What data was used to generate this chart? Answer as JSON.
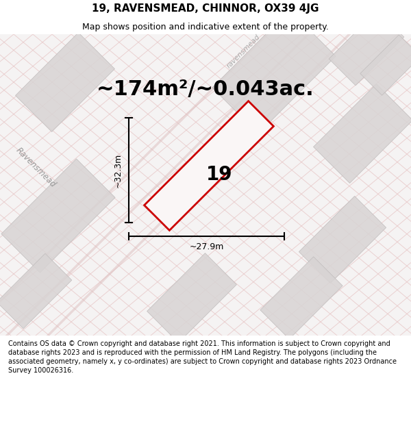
{
  "title": "19, RAVENSMEAD, CHINNOR, OX39 4JG",
  "subtitle": "Map shows position and indicative extent of the property.",
  "area_text": "~174m²/~0.043ac.",
  "width_label": "~27.9m",
  "height_label": "~32.3m",
  "property_number": "19",
  "footer_text": "Contains OS data © Crown copyright and database right 2021. This information is subject to Crown copyright and database rights 2023 and is reproduced with the permission of HM Land Registry. The polygons (including the associated geometry, namely x, y co-ordinates) are subject to Crown copyright and database rights 2023 Ordnance Survey 100026316.",
  "map_bg": "#f5f3f3",
  "plot_fill": "#f0ecec",
  "plot_outline": "#cc0000",
  "road_color": "#e8c8c8",
  "gray_block_fill": "#d8d4d4",
  "gray_block_edge": "#c0bcbc",
  "street_label_left": "Ravensmead",
  "street_label_top": "ravensmead",
  "title_fontsize": 11,
  "subtitle_fontsize": 9,
  "area_fontsize": 22,
  "property_num_fontsize": 20,
  "dim_fontsize": 9,
  "footer_fontsize": 7
}
